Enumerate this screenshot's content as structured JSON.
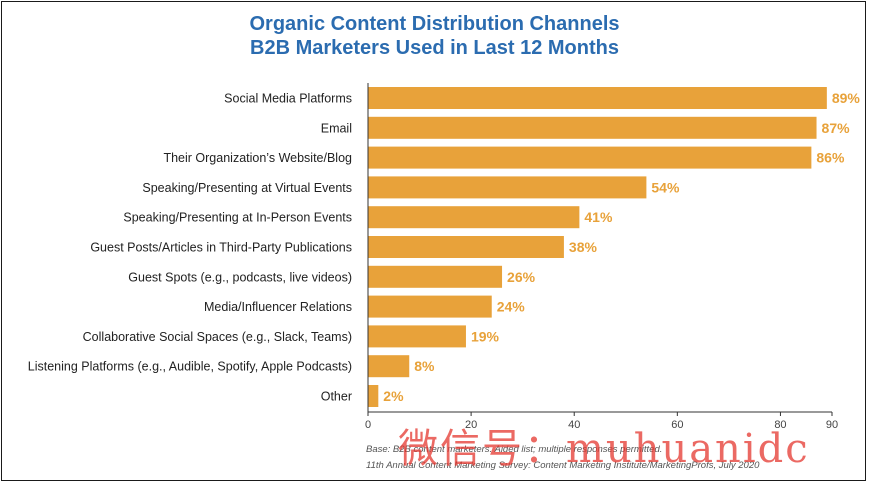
{
  "chart_data": {
    "type": "bar",
    "orientation": "horizontal",
    "title": "Organic Content Distribution Channels",
    "subtitle": "B2B Marketers Used in Last 12 Months",
    "categories": [
      "Social Media Platforms",
      "Email",
      "Their Organization’s Website/Blog",
      "Speaking/Presenting at Virtual Events",
      "Speaking/Presenting at In-Person Events",
      "Guest Posts/Articles in Third-Party Publications",
      "Guest Spots (e.g., podcasts, live videos)",
      "Media/Influencer Relations",
      "Collaborative Social Spaces (e.g., Slack, Teams)",
      "Listening Platforms (e.g., Audible, Spotify, Apple Podcasts)",
      "Other"
    ],
    "values": [
      89,
      87,
      86,
      54,
      41,
      38,
      26,
      24,
      19,
      8,
      2
    ],
    "value_labels": [
      "89%",
      "87%",
      "86%",
      "54%",
      "41%",
      "38%",
      "26%",
      "24%",
      "19%",
      "8%",
      "2%"
    ],
    "xlim": [
      0,
      90
    ],
    "xticks": [
      0,
      20,
      40,
      60,
      80,
      90
    ],
    "grid": false,
    "bar_color": "#e8a23a",
    "label_color": "#e8a23a"
  },
  "footnote": {
    "line1": "Base: B2B content marketers. Aided list; multiple responses permitted.",
    "line2": "11th Annual Content Marketing Survey: Content Marketing Institute/MarketingProfs, July 2020"
  },
  "watermark": "微信号：muhuanidc"
}
